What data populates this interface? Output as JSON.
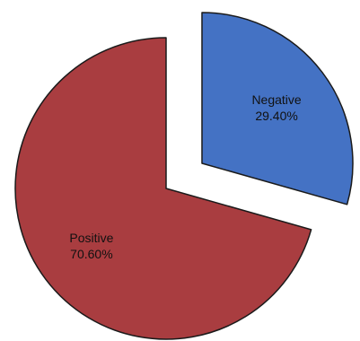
{
  "chart_data": {
    "type": "pie",
    "exploded": true,
    "slices": [
      {
        "label": "Negative",
        "value": 29.4,
        "value_label": "29.40%",
        "color": "#4472C4"
      },
      {
        "label": "Positive",
        "value": 70.6,
        "value_label": "70.60%",
        "color": "#A93D40"
      }
    ]
  }
}
